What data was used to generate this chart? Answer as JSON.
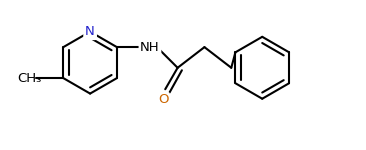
{
  "background_color": "#ffffff",
  "bond_color": "#000000",
  "N_color": "#2222cc",
  "O_color": "#cc6600",
  "line_width": 1.5,
  "fig_width": 3.66,
  "fig_height": 1.5,
  "dpi": 100,
  "xlim": [
    -2.0,
    5.5
  ],
  "ylim": [
    -1.8,
    1.8
  ]
}
